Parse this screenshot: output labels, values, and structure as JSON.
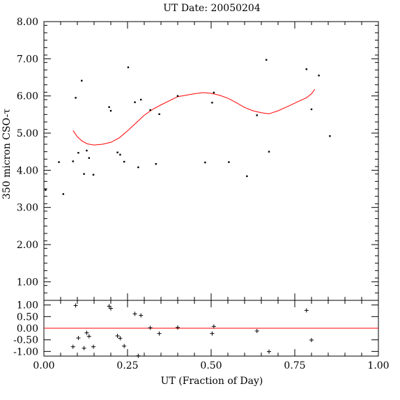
{
  "chart_data": [
    {
      "type": "scatter",
      "title": "UT Date: 20050204",
      "xlabel": "",
      "ylabel": "350 micron CSO-τ",
      "xlim": [
        0.0,
        1.0
      ],
      "ylim": [
        0.5,
        8.0
      ],
      "yticks": [
        "1.00",
        "2.00",
        "3.00",
        "4.00",
        "5.00",
        "6.00",
        "7.00",
        "8.00"
      ],
      "grid": false,
      "series": [
        {
          "marker": "dot",
          "color": "#000000",
          "x": [
            0.005,
            0.045,
            0.058,
            0.087,
            0.095,
            0.103,
            0.113,
            0.12,
            0.128,
            0.135,
            0.148,
            0.195,
            0.2,
            0.22,
            0.228,
            0.24,
            0.252,
            0.272,
            0.282,
            0.29,
            0.318,
            0.335,
            0.345,
            0.4,
            0.482,
            0.503,
            0.508,
            0.553,
            0.607,
            0.637,
            0.665,
            0.673,
            0.785,
            0.8,
            0.822,
            0.855
          ],
          "y": [
            3.47,
            4.22,
            3.36,
            4.24,
            5.95,
            4.47,
            6.41,
            3.9,
            4.53,
            4.33,
            3.88,
            5.7,
            5.6,
            4.48,
            4.42,
            4.23,
            6.77,
            5.83,
            4.08,
            5.9,
            5.62,
            4.17,
            5.51,
            6.0,
            4.21,
            5.82,
            6.09,
            4.22,
            3.84,
            5.48,
            6.97,
            4.5,
            6.72,
            5.64,
            6.55,
            4.92
          ]
        },
        {
          "marker": "line",
          "color": "#ff0000",
          "x": [
            0.087,
            0.1,
            0.115,
            0.13,
            0.15,
            0.175,
            0.2,
            0.225,
            0.25,
            0.275,
            0.3,
            0.325,
            0.35,
            0.4,
            0.45,
            0.475,
            0.5,
            0.525,
            0.55,
            0.575,
            0.6,
            0.625,
            0.65,
            0.673,
            0.7,
            0.73,
            0.76,
            0.785,
            0.8,
            0.81
          ],
          "y": [
            5.07,
            4.9,
            4.78,
            4.71,
            4.68,
            4.7,
            4.75,
            4.87,
            5.06,
            5.27,
            5.48,
            5.64,
            5.76,
            5.98,
            6.06,
            6.09,
            6.07,
            6.02,
            5.94,
            5.82,
            5.69,
            5.6,
            5.55,
            5.52,
            5.6,
            5.72,
            5.85,
            5.95,
            6.06,
            6.18
          ]
        }
      ]
    },
    {
      "type": "scatter",
      "title": "",
      "xlabel": "UT (Fraction of Day)",
      "ylabel": "",
      "xlim": [
        0.0,
        1.0
      ],
      "ylim": [
        -1.2,
        1.2
      ],
      "xticks": [
        "0.00",
        "0.25",
        "0.50",
        "0.75",
        "1.00"
      ],
      "yticks": [
        "-1.00",
        "-0.50",
        "0.00",
        "0.50",
        "1.00"
      ],
      "grid": false,
      "series": [
        {
          "marker": "plus",
          "color": "#000000",
          "x": [
            0.087,
            0.095,
            0.103,
            0.12,
            0.128,
            0.135,
            0.148,
            0.195,
            0.2,
            0.22,
            0.228,
            0.24,
            0.272,
            0.282,
            0.29,
            0.318,
            0.345,
            0.4,
            0.503,
            0.508,
            0.637,
            0.673,
            0.785,
            0.8
          ],
          "y": [
            -0.8,
            0.98,
            -0.42,
            -0.86,
            -0.2,
            -0.35,
            -0.8,
            0.95,
            0.85,
            -0.33,
            -0.43,
            -0.77,
            0.62,
            -1.19,
            0.55,
            0.02,
            -0.23,
            0.03,
            -0.23,
            0.08,
            -0.12,
            -1.01,
            0.77,
            -0.51
          ]
        },
        {
          "marker": "zero-line",
          "color": "#ff0000",
          "x": [
            0.0,
            1.0
          ],
          "y": [
            0.0,
            0.0
          ]
        }
      ]
    }
  ]
}
